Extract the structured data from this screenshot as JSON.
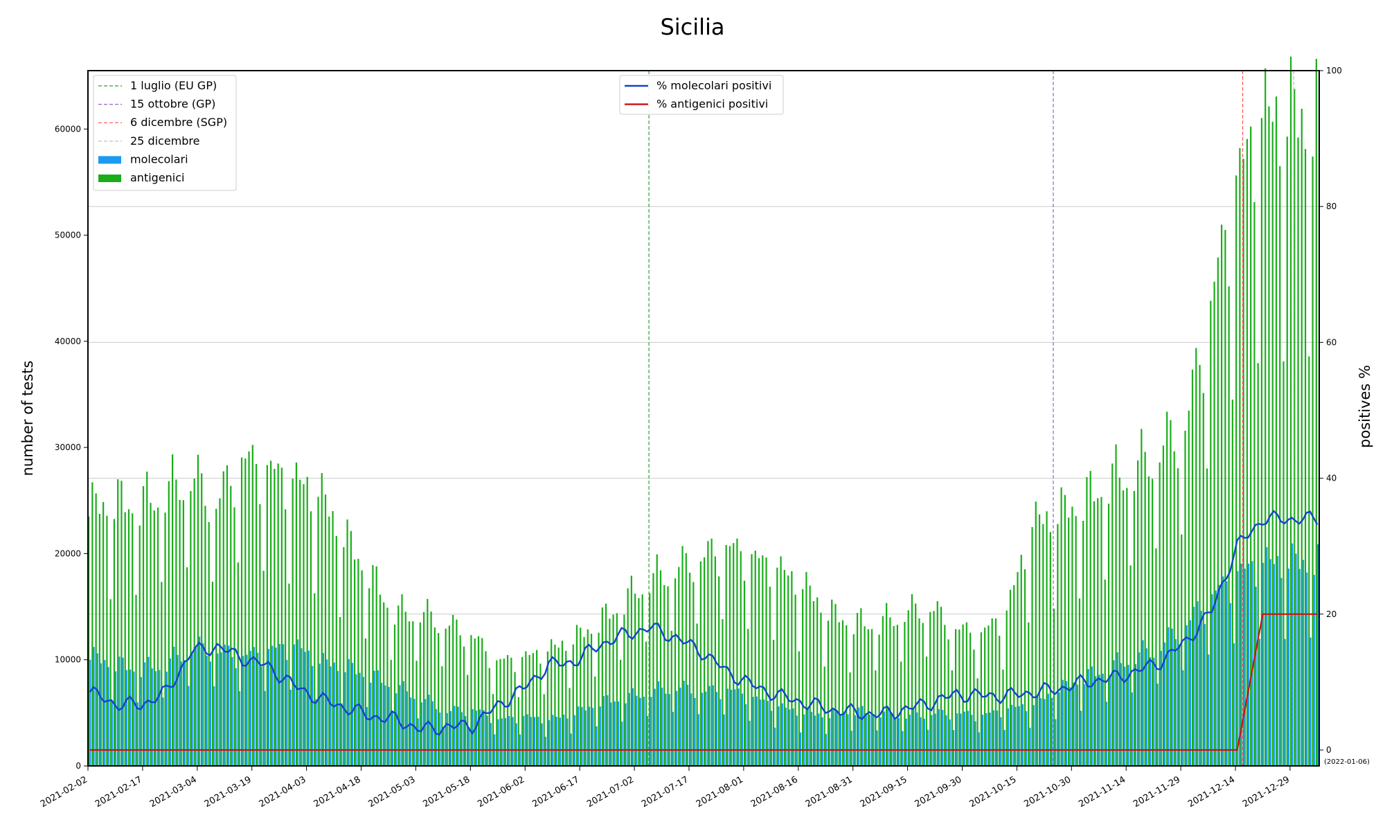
{
  "chart_data": {
    "type": "bar",
    "title": "Sicilia",
    "ylabel_left": "number of tests",
    "ylabel_right": "positives %",
    "ylim_left": [
      0,
      65500
    ],
    "ylim_right": [
      0,
      100
    ],
    "left_ticks": [
      0,
      10000,
      20000,
      30000,
      40000,
      50000,
      60000
    ],
    "right_ticks": [
      0,
      20,
      40,
      60,
      80,
      100
    ],
    "x_start": "2021-02-02",
    "x_end": "2022-01-06",
    "x_tick_labels": [
      "2021-02-02",
      "2021-02-17",
      "2021-03-04",
      "2021-03-19",
      "2021-04-03",
      "2021-04-18",
      "2021-05-03",
      "2021-05-18",
      "2021-06-02",
      "2021-06-17",
      "2021-07-02",
      "2021-07-17",
      "2021-08-01",
      "2021-08-16",
      "2021-08-31",
      "2021-09-15",
      "2021-09-30",
      "2021-10-15",
      "2021-10-30",
      "2021-11-14",
      "2021-11-29",
      "2021-12-14",
      "2021-12-29"
    ],
    "end_date_label": "(2022-01-06)",
    "grid": "horizontal (right axis)",
    "legends": {
      "events_and_bars": {
        "placement": "top-left",
        "entries": [
          {
            "label": "1 luglio (EU GP)",
            "color": "#2ca02c",
            "style": "dashed"
          },
          {
            "label": "15 ottobre (GP)",
            "color": "#9467bd",
            "style": "dashed"
          },
          {
            "label": "6 dicembre (SGP)",
            "color": "#ff4d4d",
            "style": "dashed"
          },
          {
            "label": "25 dicembre",
            "color": "#a0c8a0",
            "style": "dashed"
          },
          {
            "label": "molecolari",
            "color": "#1a9bf0",
            "style": "bar"
          },
          {
            "label": "antigenici",
            "color": "#1aad1a",
            "style": "bar"
          }
        ]
      },
      "lines": {
        "placement": "top-center",
        "entries": [
          {
            "label": "% molecolari positivi",
            "color": "#1144cc"
          },
          {
            "label": "% antigenici positivi",
            "color": "#cc1111"
          }
        ]
      }
    },
    "event_lines": [
      {
        "date": "2021-07-06",
        "color": "#2ca02c"
      },
      {
        "date": "2021-10-25",
        "color": "#9467bd"
      },
      {
        "date": "2021-12-16",
        "color": "#ff4d4d"
      },
      {
        "date": "2021-12-30",
        "color": "#a0c8a0"
      }
    ],
    "series": [
      {
        "name": "molecolari",
        "color": "#1a9bf0",
        "weekly_avg_values": [
          10000,
          9200,
          8800,
          9300,
          10800,
          10500,
          10000,
          10500,
          11000,
          9500,
          9000,
          8200,
          7200,
          6200,
          5000,
          5200,
          4200,
          4500,
          4200,
          4800,
          5800,
          6200,
          6800,
          7200,
          6800,
          7000,
          6200,
          5400,
          4800,
          4600,
          5000,
          4800,
          4600,
          4800,
          4800,
          4600,
          5200,
          5600,
          7000,
          8000,
          9000,
          10000,
          11000,
          13000,
          15500,
          17500,
          18500
        ]
      },
      {
        "name": "antigenici",
        "color": "#1aad1a",
        "weekly_avg_values": [
          23500,
          24000,
          23800,
          25000,
          26500,
          24000,
          28000,
          27000,
          26000,
          25000,
          21000,
          17500,
          14000,
          14000,
          13000,
          12000,
          9500,
          9800,
          10500,
          11500,
          13000,
          15000,
          17000,
          18000,
          19000,
          20000,
          19000,
          18000,
          16500,
          14000,
          13000,
          13000,
          14000,
          14500,
          12500,
          12000,
          14000,
          22000,
          23000,
          24000,
          26000,
          27000,
          29000,
          31000,
          42000,
          53000,
          59000
        ]
      },
      {
        "name": "% molecolari positivi",
        "color": "#1144cc",
        "weekly_avg_values": [
          8.5,
          6.8,
          6.6,
          8.5,
          14.5,
          15.2,
          13.5,
          12.3,
          9.5,
          7.5,
          6.3,
          5.0,
          4.5,
          3.0,
          3.4,
          3.6,
          6.5,
          9.0,
          12.5,
          13.0,
          15.5,
          17.0,
          18.0,
          16.5,
          14.5,
          11.5,
          9.5,
          8.0,
          7.0,
          6.0,
          5.5,
          5.2,
          6.0,
          7.0,
          8.2,
          8.0,
          8.0,
          8.5,
          9.0,
          10.0,
          10.5,
          11.5,
          13.0,
          16.0,
          20.5,
          30.0,
          34.0
        ]
      },
      {
        "name": "% antigenici positivi",
        "color": "#cc1111",
        "weekly_avg_values": [
          0,
          0,
          0,
          0,
          0,
          0,
          0,
          0,
          0,
          0,
          0,
          0,
          0,
          0,
          0,
          0,
          0,
          0,
          0,
          0,
          0,
          0,
          0,
          0,
          0,
          0,
          0,
          0,
          0,
          0,
          0,
          0,
          0,
          0,
          0,
          0,
          0,
          0,
          0,
          0,
          0,
          0,
          0,
          0,
          0,
          0,
          20
        ]
      }
    ]
  }
}
